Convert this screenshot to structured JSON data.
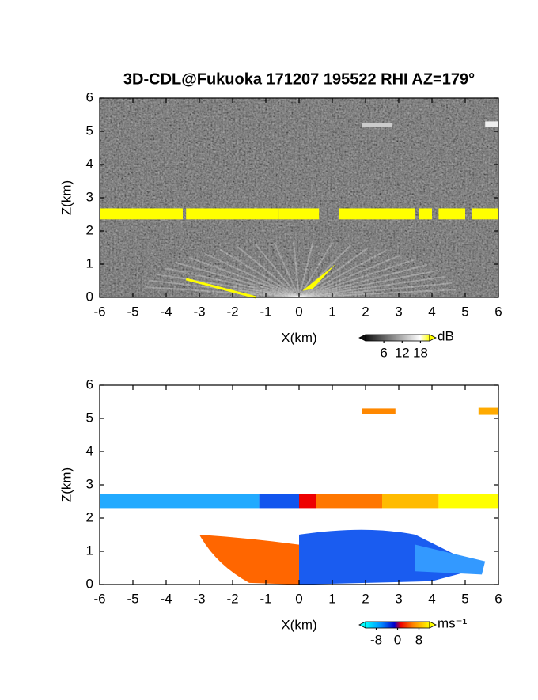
{
  "chart_data": [
    {
      "type": "rhi-image",
      "title": "3D-CDL@Fukuoka 171207 195522 RHI AZ=179°",
      "xlabel": "X(km)",
      "ylabel": "Z(km)",
      "xlim": [
        -6,
        6
      ],
      "xticks": [
        -6,
        -5,
        -4,
        -3,
        -2,
        -1,
        0,
        1,
        2,
        3,
        4,
        5,
        6
      ],
      "ylim": [
        0,
        6
      ],
      "yticks": [
        0,
        1,
        2,
        3,
        4,
        5,
        6
      ],
      "colorbar_label": "dB",
      "clim": [
        0,
        21
      ],
      "cticks": [
        6,
        12,
        18
      ]
    },
    {
      "type": "rhi-image",
      "xlabel": "X(km)",
      "ylabel": "Z(km)",
      "xlim": [
        -6,
        6
      ],
      "xticks": [
        -6,
        -5,
        -4,
        -3,
        -2,
        -1,
        0,
        1,
        2,
        3,
        4,
        5,
        6
      ],
      "ylim": [
        0,
        6
      ],
      "yticks": [
        0,
        1,
        2,
        3,
        4,
        5,
        6
      ],
      "colorbar_label": "ms⁻¹",
      "clim": [
        -12,
        12
      ],
      "cticks": [
        -8,
        0,
        8
      ]
    }
  ]
}
